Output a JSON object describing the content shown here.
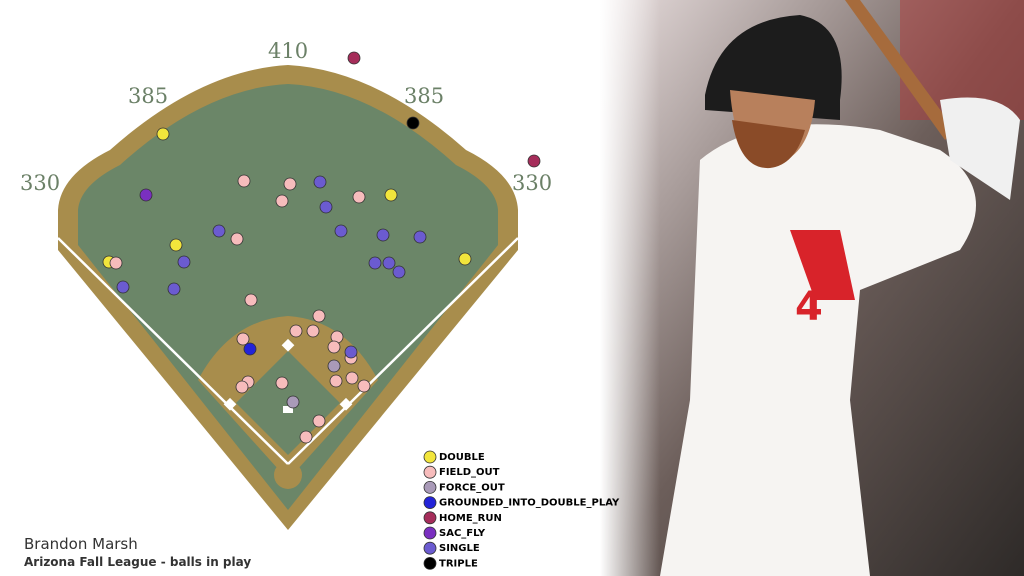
{
  "chart_data": {
    "type": "scatter",
    "title": "Brandon Marsh",
    "subtitle": "Arizona Fall League - balls in play",
    "distances": [
      "330",
      "385",
      "410",
      "385",
      "330"
    ],
    "xlim": [
      0,
      600
    ],
    "ylim": [
      0,
      576
    ],
    "series": [
      {
        "name": "DOUBLE",
        "color": "#f2e53c",
        "x": [
          163,
          391,
          176,
          109,
          465
        ],
        "values": [
          134,
          195,
          245,
          262,
          259
        ]
      },
      {
        "name": "FIELD_OUT",
        "color": "#f7bcbc",
        "x": [
          244,
          290,
          282,
          359,
          237,
          116,
          251,
          319,
          296,
          313,
          337,
          243,
          334,
          351,
          352,
          336,
          364,
          248,
          242,
          282,
          319,
          306
        ],
        "values": [
          181,
          184,
          201,
          197,
          239,
          263,
          300,
          316,
          331,
          331,
          337,
          339,
          347,
          358,
          378,
          381,
          386,
          382,
          387,
          383,
          421,
          437
        ]
      },
      {
        "name": "FORCE_OUT",
        "color": "#a99ab8",
        "x": [
          334,
          293
        ],
        "values": [
          366,
          402
        ]
      },
      {
        "name": "GROUNDED_INTO_DOUBLE_PLAY",
        "color": "#2323d8",
        "x": [
          250
        ],
        "values": [
          349
        ]
      },
      {
        "name": "HOME_RUN",
        "color": "#a52d5a",
        "x": [
          354,
          534
        ],
        "values": [
          58,
          161
        ]
      },
      {
        "name": "SAC_FLY",
        "color": "#7a2fc0",
        "x": [
          146
        ],
        "values": [
          195
        ]
      },
      {
        "name": "SINGLE",
        "color": "#6b5bd0",
        "x": [
          320,
          326,
          219,
          341,
          383,
          420,
          184,
          375,
          389,
          399,
          123,
          174,
          351
        ],
        "values": [
          182,
          207,
          231,
          231,
          235,
          237,
          262,
          263,
          263,
          272,
          287,
          289,
          352
        ]
      },
      {
        "name": "TRIPLE",
        "color": "#000000",
        "x": [
          413
        ],
        "values": [
          123
        ]
      }
    ]
  }
}
